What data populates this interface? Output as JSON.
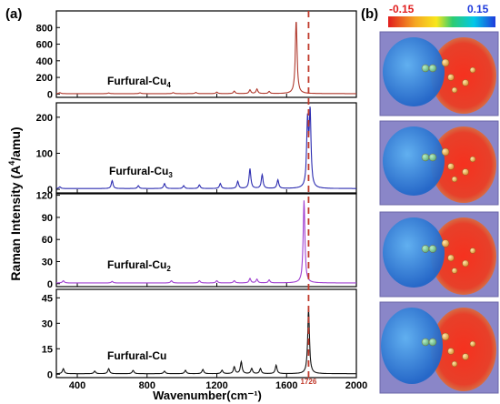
{
  "figure": {
    "panel_a_label": "(a)",
    "panel_b_label": "(b)",
    "colorbar": {
      "min_label": "-0.15",
      "max_label": "0.15",
      "min": -0.15,
      "max": 0.15
    }
  },
  "chart_data": {
    "type": "line",
    "xlabel": "Wavenumber(cm⁻¹)",
    "ylabel_prefix": "Raman Intensity (A",
    "ylabel_sup": "4",
    "ylabel_suffix": "/amu)",
    "xlim": [
      280,
      2000
    ],
    "xticks": [
      400,
      800,
      1200,
      1600,
      2000
    ],
    "marker": {
      "x": 1726,
      "label": "1726",
      "color": "#c0392b"
    },
    "panels": [
      {
        "label_base": "Furfural-Cu",
        "label_sub": "4",
        "color": "#b03a2e",
        "ylim": [
          -40,
          1000
        ],
        "yticks": [
          0,
          200,
          400,
          600,
          800
        ],
        "baseline": 5,
        "peaks": [
          {
            "x": 300,
            "h": 12
          },
          {
            "x": 580,
            "h": 8
          },
          {
            "x": 760,
            "h": 10
          },
          {
            "x": 950,
            "h": 12
          },
          {
            "x": 1080,
            "h": 14
          },
          {
            "x": 1200,
            "h": 18
          },
          {
            "x": 1300,
            "h": 30
          },
          {
            "x": 1390,
            "h": 45
          },
          {
            "x": 1430,
            "h": 55
          },
          {
            "x": 1500,
            "h": 25
          },
          {
            "x": 1655,
            "h": 880
          }
        ]
      },
      {
        "label_base": "Furfural-Cu",
        "label_sub": "3",
        "color": "#2c2cb0",
        "ylim": [
          -10,
          240
        ],
        "yticks": [
          0,
          100,
          200
        ],
        "baseline": 2,
        "peaks": [
          {
            "x": 300,
            "h": 5
          },
          {
            "x": 600,
            "h": 22
          },
          {
            "x": 750,
            "h": 8
          },
          {
            "x": 900,
            "h": 14
          },
          {
            "x": 1010,
            "h": 8
          },
          {
            "x": 1100,
            "h": 10
          },
          {
            "x": 1220,
            "h": 14
          },
          {
            "x": 1320,
            "h": 20
          },
          {
            "x": 1390,
            "h": 55
          },
          {
            "x": 1460,
            "h": 38
          },
          {
            "x": 1550,
            "h": 24
          },
          {
            "x": 1720,
            "h": 180
          },
          {
            "x": 1735,
            "h": 205
          }
        ]
      },
      {
        "label_base": "Furfural-Cu",
        "label_sub": "2",
        "color": "#a040d0",
        "ylim": [
          -4,
          122
        ],
        "yticks": [
          0,
          30,
          60,
          90,
          120
        ],
        "baseline": 1,
        "peaks": [
          {
            "x": 320,
            "h": 3
          },
          {
            "x": 600,
            "h": 2
          },
          {
            "x": 940,
            "h": 3
          },
          {
            "x": 1100,
            "h": 3
          },
          {
            "x": 1200,
            "h": 3
          },
          {
            "x": 1300,
            "h": 3
          },
          {
            "x": 1390,
            "h": 6
          },
          {
            "x": 1430,
            "h": 5
          },
          {
            "x": 1500,
            "h": 4
          },
          {
            "x": 1700,
            "h": 112
          }
        ]
      },
      {
        "label_base": "Furfural-Cu",
        "label_sub": "",
        "color": "#111111",
        "ylim": [
          -2,
          50
        ],
        "yticks": [
          0,
          15,
          30,
          45
        ],
        "baseline": 0.3,
        "peaks": [
          {
            "x": 320,
            "h": 3
          },
          {
            "x": 500,
            "h": 1.5
          },
          {
            "x": 580,
            "h": 3
          },
          {
            "x": 720,
            "h": 2
          },
          {
            "x": 900,
            "h": 1.5
          },
          {
            "x": 1020,
            "h": 2
          },
          {
            "x": 1120,
            "h": 2.5
          },
          {
            "x": 1230,
            "h": 2
          },
          {
            "x": 1300,
            "h": 4
          },
          {
            "x": 1340,
            "h": 7
          },
          {
            "x": 1400,
            "h": 3
          },
          {
            "x": 1450,
            "h": 3
          },
          {
            "x": 1540,
            "h": 5
          },
          {
            "x": 1726,
            "h": 38
          }
        ]
      }
    ]
  }
}
